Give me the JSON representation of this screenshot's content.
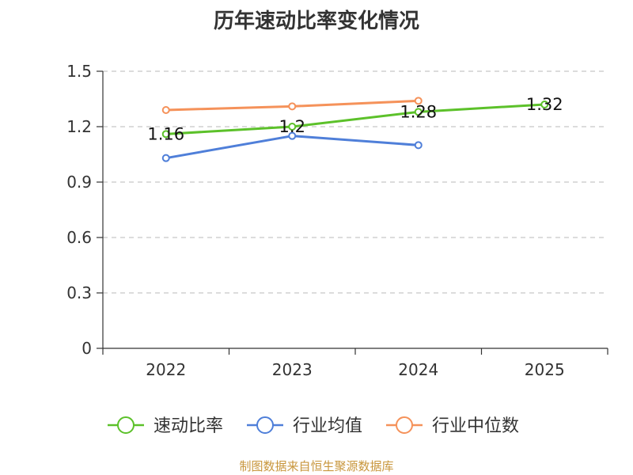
{
  "title": "历年速动比率变化情况",
  "source": "制图数据来自恒生聚源数据库",
  "chart_data": {
    "type": "line",
    "title": "历年速动比率变化情况",
    "categories": [
      "2022",
      "2023",
      "2024",
      "2025"
    ],
    "ylim": [
      0,
      1.5
    ],
    "yticks": [
      "0",
      "0.3",
      "0.6",
      "0.9",
      "1.2",
      "1.5"
    ],
    "grid": true,
    "legend_position": "bottom",
    "series": [
      {
        "name": "速动比率",
        "color": "#5cc12a",
        "values": [
          1.16,
          1.2,
          1.28,
          1.32
        ],
        "labels": [
          "1.16",
          "1.2",
          "1.28",
          "1.32"
        ]
      },
      {
        "name": "行业均值",
        "color": "#4f7fd9",
        "values": [
          1.03,
          1.15,
          1.1,
          null
        ]
      },
      {
        "name": "行业中位数",
        "color": "#f5925a",
        "values": [
          1.29,
          1.31,
          1.34,
          null
        ]
      }
    ]
  }
}
